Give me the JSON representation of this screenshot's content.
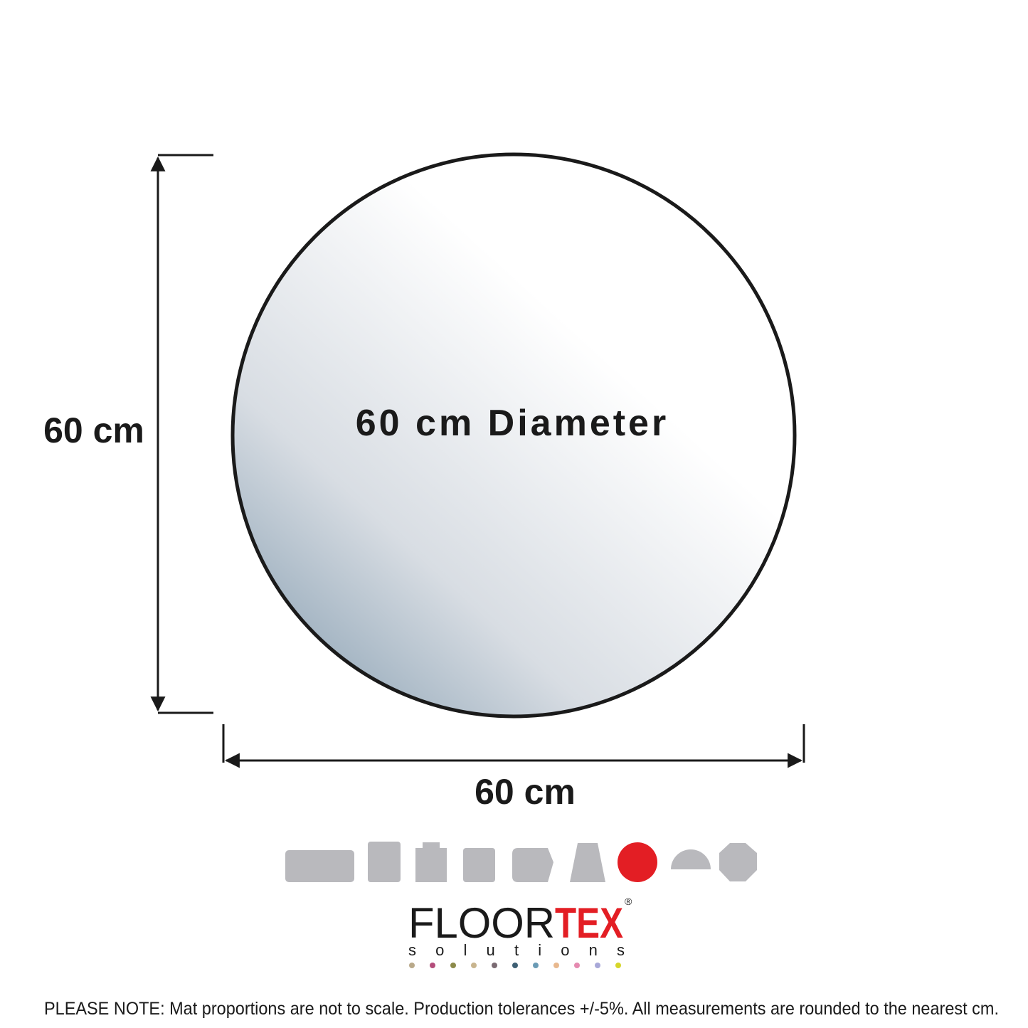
{
  "dimensions": {
    "height_label": "60 cm",
    "center_label": "60 cm Diameter",
    "width_label": "60 cm"
  },
  "logo": {
    "name_left": "FLOOR",
    "name_right": "TEX",
    "mark": "®",
    "tagline": "solutions"
  },
  "note": "PLEASE NOTE: Mat proportions are not to scale. Production tolerances +/-5%. All measurements are rounded to the nearest cm."
}
